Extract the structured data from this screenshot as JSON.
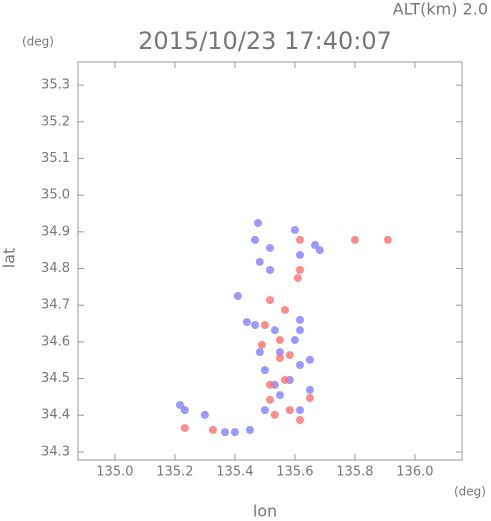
{
  "chart_data": {
    "type": "scatter",
    "subtitle": "ALT(km) 2.0",
    "title": "2015/10/23 17:40:07",
    "x_label": "lon",
    "y_label": "lat",
    "x_unit": "(deg)",
    "y_unit": "(deg)",
    "xlim": [
      134.877,
      136.157
    ],
    "ylim": [
      34.278,
      35.363
    ],
    "xticks": [
      {
        "value": 135,
        "label": "135.0"
      },
      {
        "value": 135.2,
        "label": "135.2"
      },
      {
        "value": 135.4,
        "label": "135.4"
      },
      {
        "value": 135.6,
        "label": "135.6"
      },
      {
        "value": 135.8,
        "label": "135.8"
      },
      {
        "value": 136,
        "label": "136.0"
      }
    ],
    "yticks": [
      34.3,
      34.4,
      34.5,
      34.6,
      34.7,
      34.8,
      34.9,
      {
        "value": 35,
        "label": "35.0"
      },
      35.1,
      35.2,
      35.3
    ],
    "series": [
      {
        "color": "#7f7fff",
        "x": [
          135.217,
          135.233,
          135.45,
          135.4,
          135.483,
          135.44,
          135.467,
          135.533,
          135.617,
          135.6,
          135.517,
          135.483,
          135.617,
          135.65,
          135.583,
          135.617,
          135.5,
          135.55,
          135.683,
          135.617,
          135.667,
          135.467,
          135.517,
          135.41,
          135.6,
          135.55,
          135.533,
          135.65,
          135.5,
          135.617,
          135.367,
          135.3,
          135.477
        ],
        "values": [
          34.428,
          34.414,
          34.36,
          34.354,
          34.572,
          34.654,
          34.646,
          34.632,
          34.66,
          34.605,
          34.796,
          34.818,
          34.632,
          34.551,
          34.496,
          34.414,
          34.414,
          34.455,
          34.85,
          34.837,
          34.864,
          34.878,
          34.856,
          34.725,
          34.905,
          34.572,
          34.483,
          34.469,
          34.523,
          34.537,
          34.354,
          34.401,
          34.924
        ]
      },
      {
        "color": "#ff6f6f",
        "x": [
          135.233,
          135.327,
          135.517,
          135.5,
          135.567,
          135.583,
          135.55,
          135.567,
          135.517,
          135.583,
          135.617,
          135.533,
          135.617,
          135.61,
          135.8,
          135.91,
          135.65,
          135.517,
          135.55,
          135.617,
          135.49
        ],
        "values": [
          34.365,
          34.36,
          34.714,
          34.646,
          34.687,
          34.564,
          34.556,
          34.496,
          34.442,
          34.414,
          34.387,
          34.401,
          34.796,
          34.774,
          34.878,
          34.878,
          34.447,
          34.483,
          34.605,
          34.878,
          34.592
        ]
      }
    ]
  }
}
